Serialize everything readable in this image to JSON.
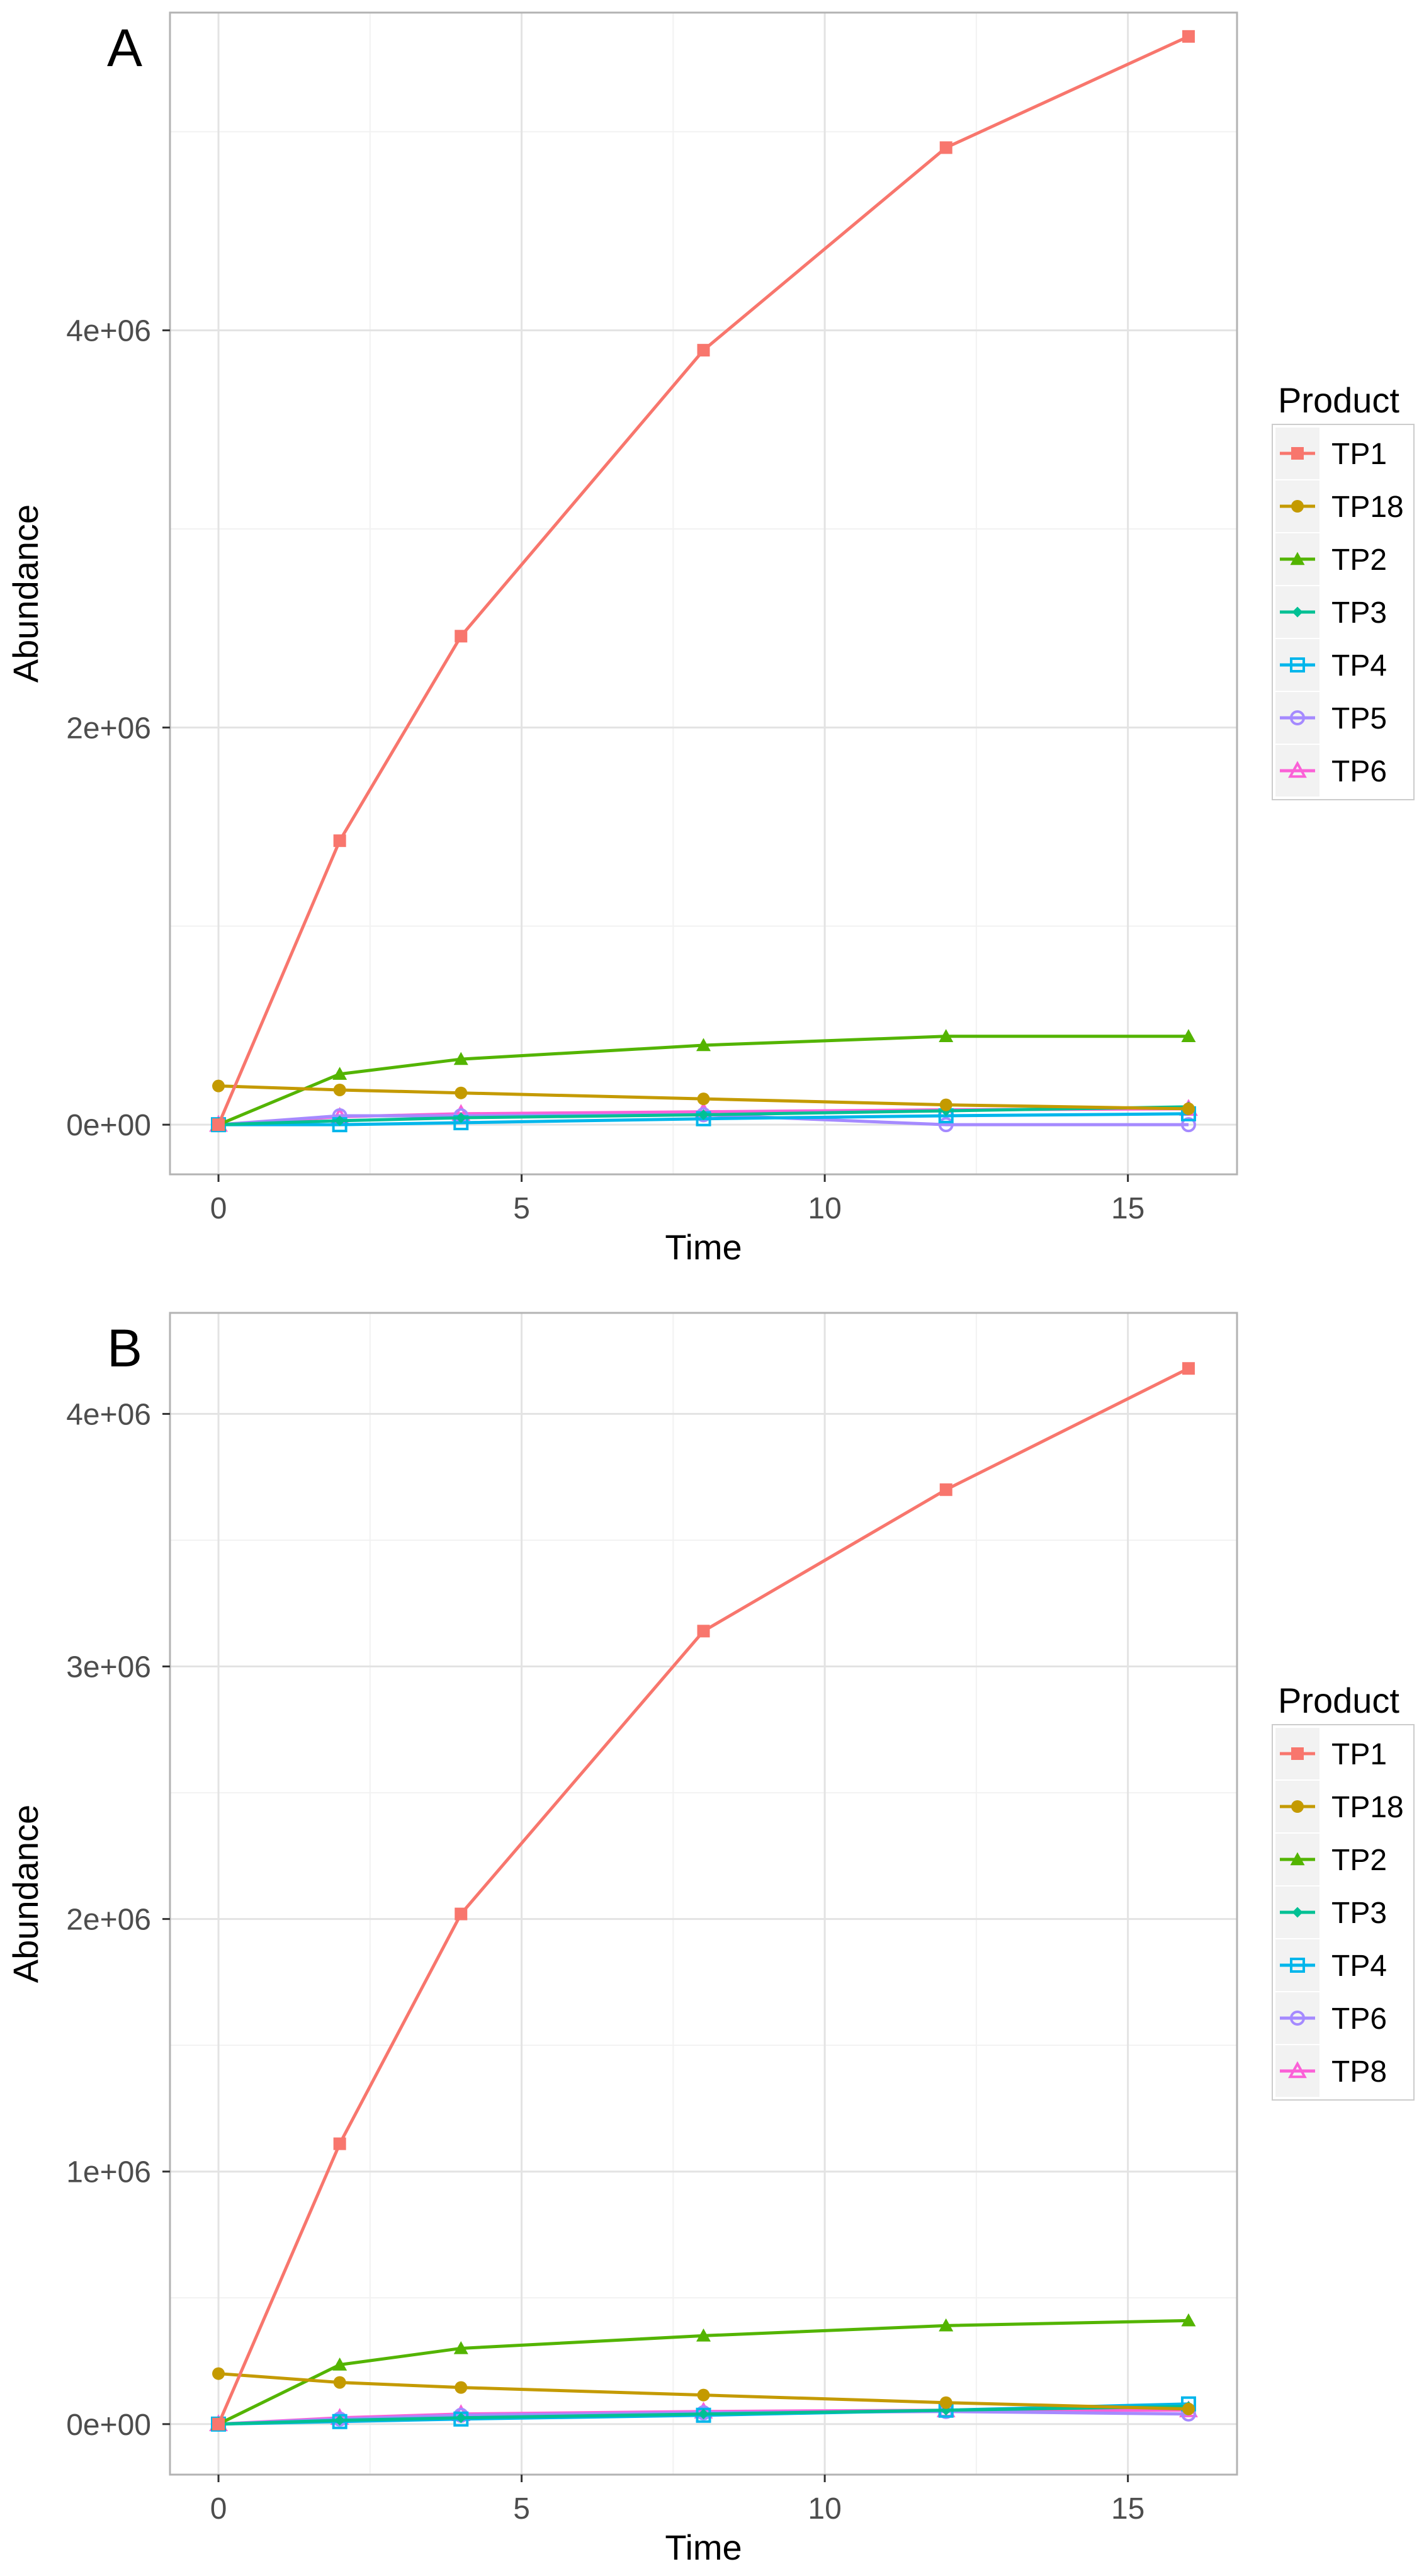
{
  "chart_data": [
    {
      "panel": "A",
      "type": "line",
      "xlabel": "Time",
      "ylabel": "Abundance",
      "legend_title": "Product",
      "legend_position": "right",
      "grid": true,
      "xlim": [
        -0.8,
        16.8
      ],
      "ylim": [
        -250000,
        5600000
      ],
      "xticks": [
        0,
        5,
        10,
        15
      ],
      "xtick_labels": [
        "0",
        "5",
        "10",
        "15"
      ],
      "yticks": [
        0,
        2000000,
        4000000
      ],
      "ytick_labels": [
        "0e+00",
        "2e+06",
        "4e+06"
      ],
      "x": [
        0,
        2,
        4,
        8,
        12,
        16
      ],
      "series": [
        {
          "name": "TP1",
          "color": "#F8766D",
          "marker": "square-filled",
          "values": [
            0,
            1430000,
            2460000,
            3900000,
            4920000,
            5480000
          ]
        },
        {
          "name": "TP18",
          "color": "#C49A00",
          "marker": "circle-filled",
          "values": [
            195000,
            175000,
            160000,
            130000,
            100000,
            80000
          ]
        },
        {
          "name": "TP2",
          "color": "#53B400",
          "marker": "triangle-filled",
          "values": [
            0,
            255000,
            330000,
            400000,
            445000,
            445000
          ]
        },
        {
          "name": "TP3",
          "color": "#00C094",
          "marker": "diamond-filled",
          "values": [
            0,
            20000,
            35000,
            50000,
            70000,
            90000
          ]
        },
        {
          "name": "TP4",
          "color": "#00B6EB",
          "marker": "square-open",
          "values": [
            0,
            0,
            10000,
            30000,
            45000,
            55000
          ]
        },
        {
          "name": "TP5",
          "color": "#A58AFF",
          "marker": "circle-open",
          "values": [
            0,
            45000,
            45000,
            50000,
            0,
            0
          ]
        },
        {
          "name": "TP6",
          "color": "#FB61D7",
          "marker": "triangle-open",
          "values": [
            0,
            40000,
            55000,
            65000,
            75000,
            80000
          ]
        }
      ]
    },
    {
      "panel": "B",
      "type": "line",
      "xlabel": "Time",
      "ylabel": "Abundance",
      "legend_title": "Product",
      "legend_position": "right",
      "grid": true,
      "xlim": [
        -0.8,
        16.8
      ],
      "ylim": [
        -200000,
        4400000
      ],
      "xticks": [
        0,
        5,
        10,
        15
      ],
      "xtick_labels": [
        "0",
        "5",
        "10",
        "15"
      ],
      "yticks": [
        0,
        1000000,
        2000000,
        3000000,
        4000000
      ],
      "ytick_labels": [
        "0e+00",
        "1e+06",
        "2e+06",
        "3e+06",
        "4e+06"
      ],
      "x": [
        0,
        2,
        4,
        8,
        12,
        16
      ],
      "series": [
        {
          "name": "TP1",
          "color": "#F8766D",
          "marker": "square-filled",
          "values": [
            0,
            1110000,
            2020000,
            3140000,
            3700000,
            4180000
          ]
        },
        {
          "name": "TP18",
          "color": "#C49A00",
          "marker": "circle-filled",
          "values": [
            200000,
            165000,
            145000,
            115000,
            85000,
            60000
          ]
        },
        {
          "name": "TP2",
          "color": "#53B400",
          "marker": "triangle-filled",
          "values": [
            0,
            235000,
            300000,
            350000,
            390000,
            410000
          ]
        },
        {
          "name": "TP3",
          "color": "#00C094",
          "marker": "diamond-filled",
          "values": [
            0,
            15000,
            25000,
            40000,
            55000,
            70000
          ]
        },
        {
          "name": "TP4",
          "color": "#00B6EB",
          "marker": "square-open",
          "values": [
            0,
            10000,
            20000,
            35000,
            55000,
            80000
          ]
        },
        {
          "name": "TP6",
          "color": "#A58AFF",
          "marker": "circle-open",
          "values": [
            0,
            20000,
            35000,
            45000,
            50000,
            40000
          ]
        },
        {
          "name": "TP8",
          "color": "#FB61D7",
          "marker": "triangle-open",
          "values": [
            0,
            25000,
            40000,
            50000,
            55000,
            55000
          ]
        }
      ]
    }
  ]
}
